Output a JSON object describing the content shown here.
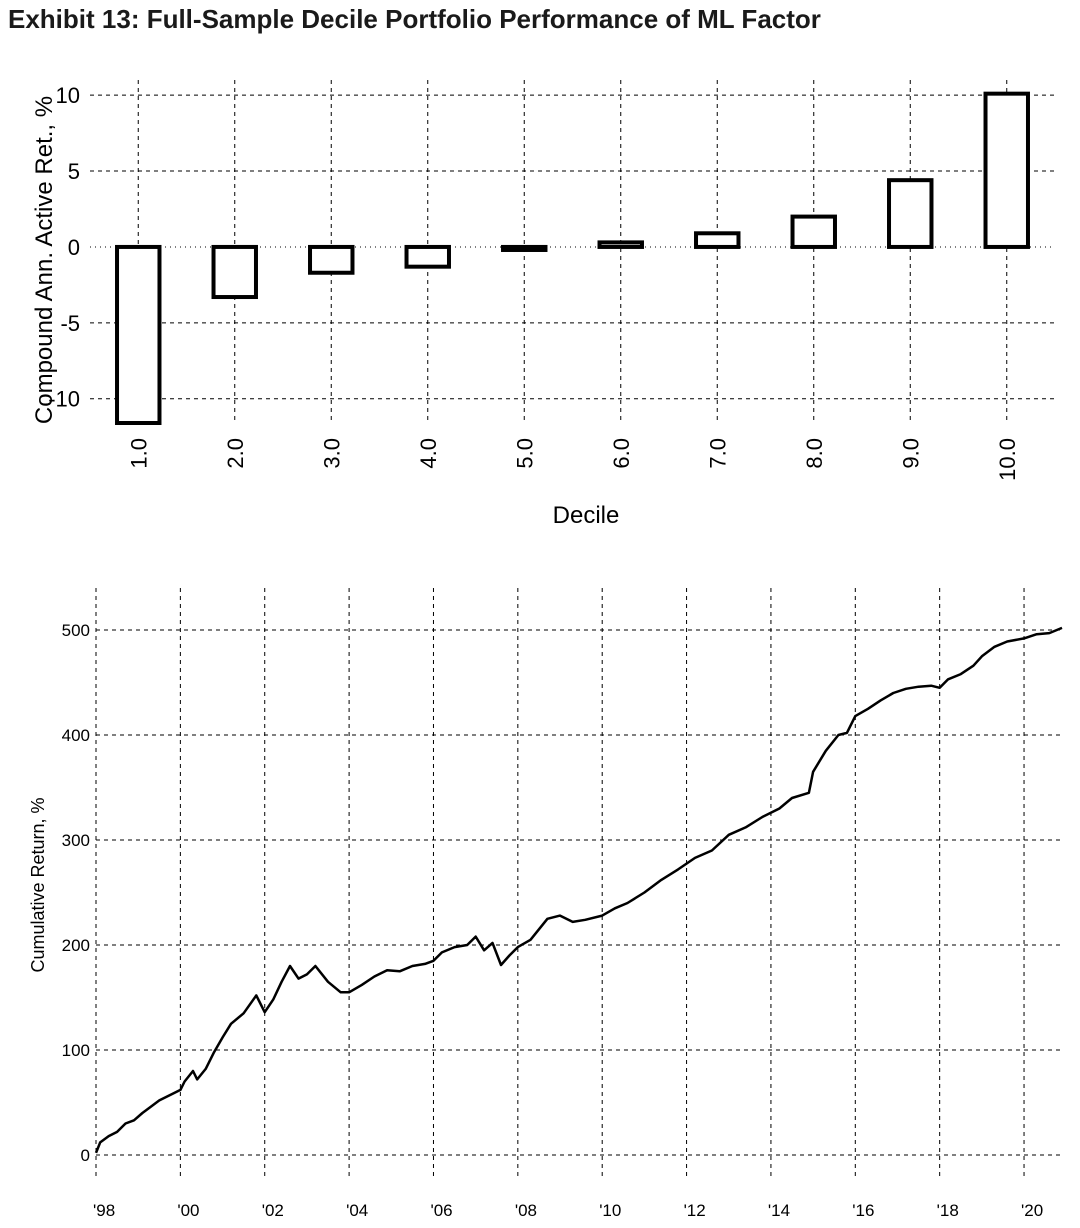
{
  "title": "Exhibit 13: Full-Sample Decile Portfolio Performance of ML Factor",
  "chart_data": [
    {
      "type": "bar",
      "title": "",
      "xlabel": "Decile",
      "ylabel": "Compound Ann. Active Ret., %",
      "categories": [
        "1.0",
        "2.0",
        "3.0",
        "4.0",
        "5.0",
        "6.0",
        "7.0",
        "8.0",
        "9.0",
        "10.0"
      ],
      "values": [
        -11.6,
        -3.3,
        -1.7,
        -1.3,
        -0.2,
        0.3,
        0.9,
        2.0,
        4.4,
        10.1
      ],
      "ylim": [
        -11.6,
        11.0
      ],
      "yticks": [
        10,
        5,
        0,
        -5,
        -10
      ],
      "yticklabels": [
        "10",
        "5",
        "0",
        "-5",
        "-10"
      ],
      "grid": true
    },
    {
      "type": "line",
      "title": "",
      "xlabel": "",
      "ylabel": "Cumulative Return, %",
      "xticks": [
        1998,
        2000,
        2002,
        2004,
        2006,
        2008,
        2010,
        2012,
        2014,
        2016,
        2018,
        2020
      ],
      "xticklabels": [
        "'98",
        "'00",
        "'02",
        "'04",
        "'06",
        "'08",
        "'10",
        "'12",
        "'14",
        "'16",
        "'18",
        "'20"
      ],
      "yticks": [
        0,
        100,
        200,
        300,
        400,
        500
      ],
      "yticklabels": [
        "0",
        "100",
        "200",
        "300",
        "400",
        "500"
      ],
      "xlim": [
        1998.0,
        2020.9
      ],
      "ylim": [
        0,
        540
      ],
      "grid": true,
      "series": [
        {
          "x": [
            1998.0,
            1998.1,
            1998.3,
            1998.5,
            1998.7,
            1998.9,
            1999.1,
            1999.3,
            1999.5,
            1999.8,
            2000.0,
            2000.1,
            2000.3,
            2000.4,
            2000.6,
            2000.8,
            2001.0,
            2001.2,
            2001.5,
            2001.8,
            2002.0,
            2002.2,
            2002.4,
            2002.6,
            2002.8,
            2003.0,
            2003.2,
            2003.5,
            2003.8,
            2004.0,
            2004.3,
            2004.6,
            2004.9,
            2005.2,
            2005.5,
            2005.8,
            2006.0,
            2006.2,
            2006.5,
            2006.8,
            2007.0,
            2007.2,
            2007.4,
            2007.6,
            2007.8,
            2008.0,
            2008.3,
            2008.7,
            2009.0,
            2009.3,
            2009.6,
            2010.0,
            2010.3,
            2010.6,
            2011.0,
            2011.4,
            2011.8,
            2012.2,
            2012.6,
            2013.0,
            2013.4,
            2013.8,
            2014.2,
            2014.5,
            2014.9,
            2015.0,
            2015.3,
            2015.6,
            2015.8,
            2016.0,
            2016.3,
            2016.6,
            2016.9,
            2017.2,
            2017.5,
            2017.8,
            2018.0,
            2018.2,
            2018.5,
            2018.8,
            2019.0,
            2019.3,
            2019.6,
            2020.0,
            2020.3,
            2020.6,
            2020.9
          ],
          "y": [
            2,
            12,
            18,
            22,
            30,
            33,
            40,
            46,
            52,
            58,
            62,
            70,
            80,
            72,
            82,
            98,
            112,
            125,
            135,
            152,
            136,
            148,
            165,
            180,
            168,
            172,
            180,
            165,
            155,
            155,
            162,
            170,
            176,
            175,
            180,
            182,
            185,
            193,
            198,
            200,
            208,
            195,
            202,
            181,
            190,
            198,
            205,
            225,
            228,
            222,
            224,
            228,
            235,
            240,
            250,
            262,
            272,
            283,
            290,
            305,
            312,
            322,
            330,
            340,
            345,
            365,
            385,
            400,
            402,
            418,
            425,
            433,
            440,
            444,
            446,
            447,
            445,
            453,
            458,
            466,
            475,
            484,
            489,
            492,
            496,
            497,
            502
          ]
        }
      ]
    }
  ]
}
